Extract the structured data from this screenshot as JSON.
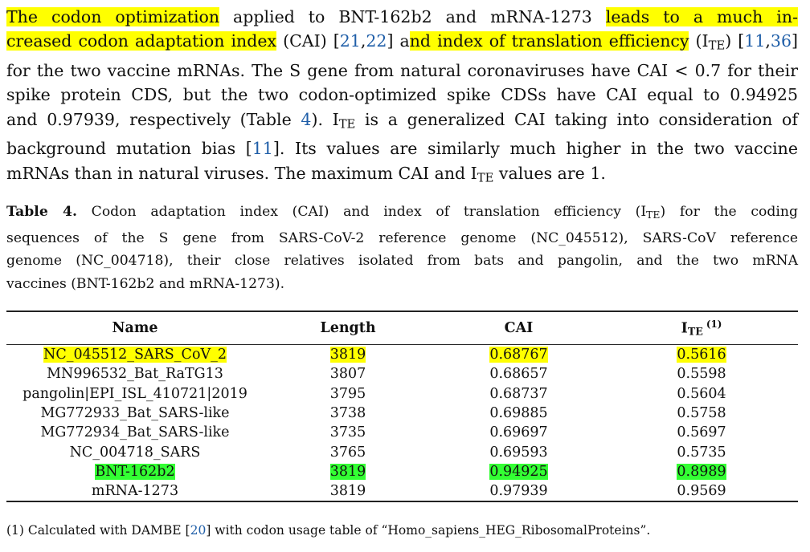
{
  "paragraph": {
    "l1_hl1": "The codon optimization",
    "l1_t1": " applied to BNT-162b2 and mRNA-1273 ",
    "l1_hl2": "leads to a much in-",
    "l2_hl1": "creased codon adaptation index",
    "l2_t1": " (CAI) [",
    "l2_ref1": "21",
    "l2_comma1": ",",
    "l2_ref2": "22",
    "l2_t2": "] a",
    "l2_hl2": "nd index of translation efficiency",
    "l2_t3": " (I",
    "l2_sub": "TE",
    "l2_t4": ") [",
    "l2_ref3": "11",
    "l2_comma2": ",",
    "l2_ref4": "36",
    "l2_t5": "]",
    "l3": "for the two vaccine mRNAs. The S gene from natural coronaviruses have CAI < 0.7 for their",
    "l4": "spike protein CDS, but the two codon-optimized spike CDSs have CAI equal to 0.94925",
    "l5_t1": "and 0.97939, respectively (Table ",
    "l5_ref": "4",
    "l5_t2": "). I",
    "l5_sub": "TE",
    "l5_t3": " is a generalized CAI taking into consideration of",
    "l6_t1": "background mutation bias [",
    "l6_ref": "11",
    "l6_t2": "]. Its values are similarly much higher in the two vaccine",
    "l7_t1": "mRNAs than in natural viruses. The maximum CAI and I",
    "l7_sub": "TE",
    "l7_t2": " values are 1."
  },
  "caption": {
    "label": "Table 4.",
    "l1_t1": " Codon adaptation index (CAI) and index of translation efficiency (I",
    "l1_sub": "TE",
    "l1_t2": ") for the coding",
    "l2": "sequences of the S gene from SARS-CoV-2 reference genome (NC_045512), SARS-CoV reference",
    "l3": "genome (NC_004718), their close relatives isolated from bats and pangolin, and the two mRNA",
    "l4": "vaccines (BNT-162b2 and mRNA-1273)."
  },
  "table": {
    "headers": {
      "name": "Name",
      "length": "Length",
      "cai": "CAI",
      "ite": "I",
      "ite_sub": "TE",
      "ite_sup": "(1)"
    },
    "rows": [
      {
        "name": "NC_045512_SARS_CoV_2",
        "length": "3819",
        "cai": "0.68767",
        "ite": "0.5616",
        "highlight": "#ffff00"
      },
      {
        "name": "MN996532_Bat_RaTG13",
        "length": "3807",
        "cai": "0.68657",
        "ite": "0.5598",
        "highlight": ""
      },
      {
        "name": "pangolin|EPI_ISL_410721|2019",
        "length": "3795",
        "cai": "0.68737",
        "ite": "0.5604",
        "highlight": ""
      },
      {
        "name": "MG772933_Bat_SARS-like",
        "length": "3738",
        "cai": "0.69885",
        "ite": "0.5758",
        "highlight": ""
      },
      {
        "name": "MG772934_Bat_SARS-like",
        "length": "3735",
        "cai": "0.69697",
        "ite": "0.5697",
        "highlight": ""
      },
      {
        "name": "NC_004718_SARS",
        "length": "3765",
        "cai": "0.69593",
        "ite": "0.5735",
        "highlight": ""
      },
      {
        "name": "BNT-162b2",
        "length": "3819",
        "cai": "0.94925",
        "ite": "0.8989",
        "highlight": "#33ff33"
      },
      {
        "name": "mRNA-1273",
        "length": "3819",
        "cai": "0.97939",
        "ite": "0.9569",
        "highlight": ""
      }
    ]
  },
  "footnote": {
    "t1": "(1) Calculated with DAMBE [",
    "ref": "20",
    "t2": "] with codon usage table of “Homo_sapiens_HEG_RibosomalProteins”."
  },
  "colors": {
    "yellow_highlight": "#ffff00",
    "green_highlight": "#33ff33",
    "link": "#1f5ea8"
  }
}
